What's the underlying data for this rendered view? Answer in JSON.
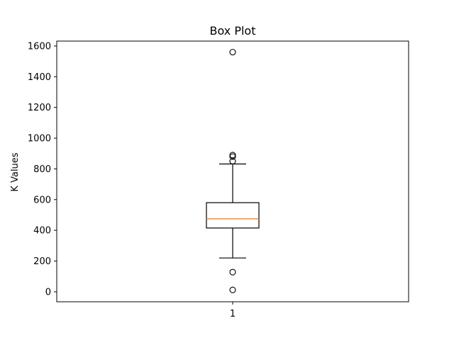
{
  "chart_data": {
    "type": "box",
    "title": "Box Plot",
    "xlabel": "",
    "ylabel": "K Values",
    "ylim": [
      -65,
      1632
    ],
    "yticks": [
      0,
      200,
      400,
      600,
      800,
      1000,
      1200,
      1400,
      1600
    ],
    "categories": [
      "1"
    ],
    "box": {
      "category": "1",
      "whisker_low": 220,
      "q1": 415,
      "median": 475,
      "q3": 580,
      "whisker_high": 832,
      "outliers": [
        1560,
        890,
        880,
        850,
        128,
        12
      ]
    },
    "grid": false,
    "colors": {
      "median": "#ff7f0e",
      "box": "#000000"
    }
  }
}
